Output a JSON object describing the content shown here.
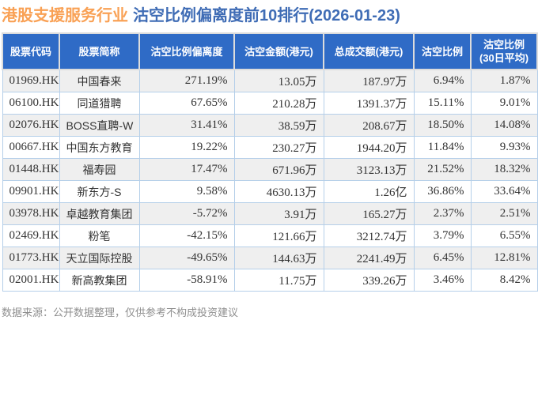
{
  "title": {
    "industry": "港股支援服务行业",
    "main": "沽空比例偏离度前10排行(2026-01-23)"
  },
  "table": {
    "headers": [
      "股票代码",
      "股票简称",
      "沽空比例偏离度",
      "沽空金额(港元)",
      "总成交额(港元)",
      "沽空比例",
      "沽空比例\n(30日平均)"
    ],
    "rows": [
      [
        "01969.HK",
        "中国春来",
        "271.19%",
        "13.05万",
        "187.97万",
        "6.94%",
        "1.87%"
      ],
      [
        "06100.HK",
        "同道猎聘",
        "67.65%",
        "210.28万",
        "1391.37万",
        "15.11%",
        "9.01%"
      ],
      [
        "02076.HK",
        "BOSS直聘-W",
        "31.41%",
        "38.59万",
        "208.67万",
        "18.50%",
        "14.08%"
      ],
      [
        "00667.HK",
        "中国东方教育",
        "19.22%",
        "230.27万",
        "1944.20万",
        "11.84%",
        "9.93%"
      ],
      [
        "01448.HK",
        "福寿园",
        "17.47%",
        "671.96万",
        "3123.13万",
        "21.52%",
        "18.32%"
      ],
      [
        "09901.HK",
        "新东方-S",
        "9.58%",
        "4630.13万",
        "1.26亿",
        "36.86%",
        "33.64%"
      ],
      [
        "03978.HK",
        "卓越教育集团",
        "-5.72%",
        "3.91万",
        "165.27万",
        "2.37%",
        "2.51%"
      ],
      [
        "02469.HK",
        "粉笔",
        "-42.15%",
        "121.66万",
        "3212.74万",
        "3.79%",
        "6.55%"
      ],
      [
        "01773.HK",
        "天立国际控股",
        "-49.65%",
        "144.63万",
        "2241.49万",
        "6.45%",
        "12.81%"
      ],
      [
        "02001.HK",
        "新高教集团",
        "-58.91%",
        "11.75万",
        "339.26万",
        "3.46%",
        "8.42%"
      ]
    ]
  },
  "footer": {
    "note": "数据来源：公开数据整理，仅供参考不构成投资建议"
  },
  "colors": {
    "header_bg": "#2f6bc6",
    "title_orange": "#f9a155",
    "title_blue": "#3f6cb5",
    "row_alt": "#efefef",
    "cell_border": "#b5cfe9",
    "footer_text": "#8f8f8f"
  }
}
